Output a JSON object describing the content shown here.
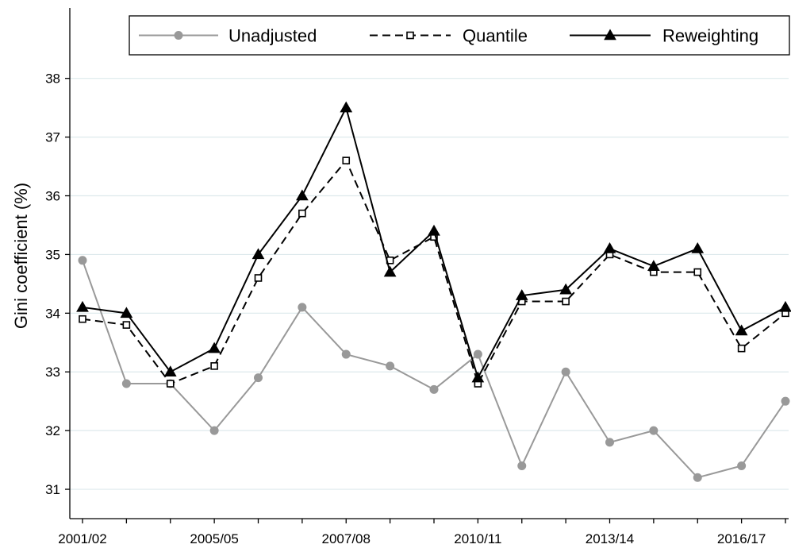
{
  "chart_data": {
    "type": "line",
    "ylabel": "Gini coefficient (%)",
    "ylim": [
      30.5,
      39.2
    ],
    "yticks": [
      31,
      32,
      33,
      34,
      35,
      36,
      37,
      38
    ],
    "ygrid": true,
    "x": [
      2001,
      2002,
      2003,
      2004,
      2005,
      2006,
      2007,
      2008,
      2009,
      2010,
      2011,
      2012,
      2013,
      2014,
      2015,
      2016,
      2017
    ],
    "xtick_labels": [
      "2001/02",
      "2005/05",
      "2007/08",
      "2010/11",
      "2013/14",
      "2016/17"
    ],
    "xtick_positions": [
      2001,
      2004,
      2007,
      2010,
      2013,
      2016
    ],
    "legend_position": "top",
    "series": [
      {
        "name": "Unadjusted",
        "values": [
          34.9,
          32.8,
          32.8,
          32.0,
          32.9,
          34.1,
          33.3,
          33.1,
          32.7,
          33.3,
          31.4,
          33.0,
          31.8,
          32.0,
          31.2,
          31.4,
          32.5
        ],
        "color": "#999999",
        "line_style": "solid",
        "marker": "circle"
      },
      {
        "name": "Quantile",
        "values": [
          33.9,
          33.8,
          32.8,
          33.1,
          34.6,
          35.7,
          36.6,
          34.9,
          35.3,
          32.8,
          34.2,
          34.2,
          35.0,
          34.7,
          34.7,
          33.4,
          34.0
        ],
        "color": "#000000",
        "line_style": "dashed",
        "marker": "open-square"
      },
      {
        "name": "Reweighting",
        "values": [
          34.1,
          34.0,
          33.0,
          33.4,
          35.0,
          36.0,
          37.5,
          34.7,
          35.4,
          32.9,
          34.3,
          34.4,
          35.1,
          34.8,
          35.1,
          33.7,
          34.1
        ],
        "color": "#000000",
        "line_style": "solid",
        "marker": "filled-triangle"
      }
    ]
  }
}
